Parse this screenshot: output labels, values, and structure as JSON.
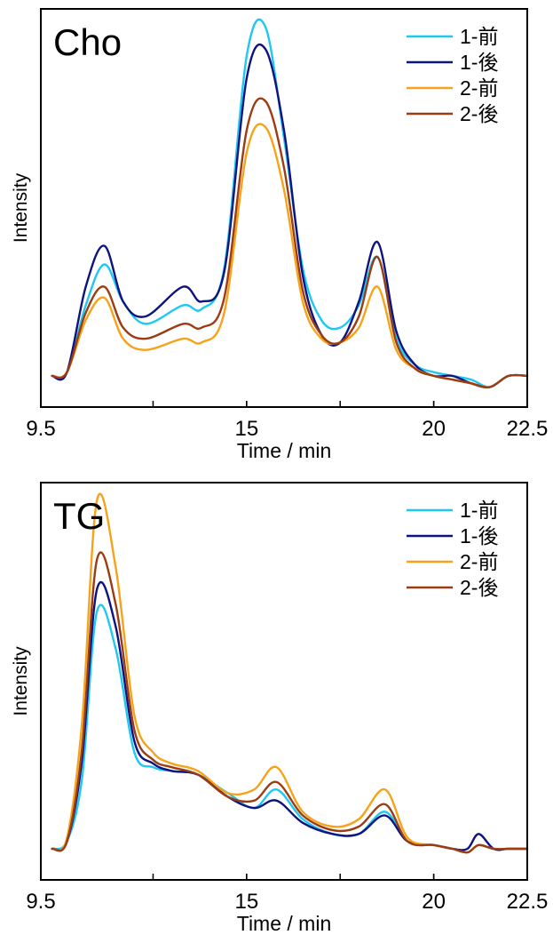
{
  "chart_data": [
    {
      "type": "line",
      "title": "Cho",
      "xlabel": "Time / min",
      "ylabel": "Intensity",
      "xlim": [
        9.5,
        22.5
      ],
      "ylim": [
        0,
        1.0
      ],
      "xticks": [
        9.5,
        15,
        20,
        22.5
      ],
      "xtick_labels": [
        "9.5",
        "15",
        "20",
        "22.5"
      ],
      "grid": false,
      "legend_position": "top-right",
      "series": [
        {
          "name": "1-前",
          "color": "#1ec8f0",
          "x": [
            9.8,
            10.2,
            10.7,
            11.2,
            11.7,
            12.3,
            13.3,
            13.8,
            14.4,
            15.0,
            15.5,
            16.0,
            16.5,
            17.0,
            17.5,
            18.0,
            18.5,
            19.0,
            19.5,
            20.0,
            20.5,
            21.0,
            21.5,
            22.0,
            22.5
          ],
          "y": [
            0.06,
            0.07,
            0.25,
            0.36,
            0.26,
            0.2,
            0.25,
            0.24,
            0.35,
            0.92,
            1.0,
            0.7,
            0.35,
            0.21,
            0.19,
            0.25,
            0.38,
            0.16,
            0.09,
            0.07,
            0.06,
            0.05,
            0.03,
            0.06,
            0.06
          ]
        },
        {
          "name": "1-後",
          "color": "#0d1480",
          "x": [
            9.8,
            10.2,
            10.7,
            11.2,
            11.7,
            12.3,
            13.3,
            13.8,
            14.4,
            15.0,
            15.5,
            16.0,
            16.5,
            17.0,
            17.5,
            18.0,
            18.5,
            19.0,
            19.5,
            20.0,
            20.5,
            21.0,
            21.5,
            22.0,
            22.5
          ],
          "y": [
            0.06,
            0.07,
            0.3,
            0.41,
            0.26,
            0.22,
            0.3,
            0.26,
            0.34,
            0.86,
            0.94,
            0.72,
            0.33,
            0.17,
            0.15,
            0.26,
            0.42,
            0.18,
            0.09,
            0.06,
            0.06,
            0.04,
            0.03,
            0.06,
            0.06
          ]
        },
        {
          "name": "2-前",
          "color": "#f6a21a",
          "x": [
            9.8,
            10.2,
            10.7,
            11.2,
            11.7,
            12.3,
            13.3,
            13.8,
            14.4,
            15.0,
            15.5,
            16.0,
            16.5,
            17.0,
            17.5,
            18.0,
            18.5,
            19.0,
            19.5,
            20.0,
            20.5,
            21.0,
            21.5,
            22.0,
            22.5
          ],
          "y": [
            0.06,
            0.07,
            0.21,
            0.27,
            0.16,
            0.13,
            0.16,
            0.15,
            0.23,
            0.66,
            0.73,
            0.56,
            0.26,
            0.16,
            0.15,
            0.19,
            0.3,
            0.13,
            0.08,
            0.06,
            0.05,
            0.04,
            0.03,
            0.06,
            0.06
          ]
        },
        {
          "name": "2-後",
          "color": "#9c3c12",
          "x": [
            9.8,
            10.2,
            10.7,
            11.2,
            11.7,
            12.3,
            13.3,
            13.8,
            14.4,
            15.0,
            15.5,
            16.0,
            16.5,
            17.0,
            17.5,
            18.0,
            18.5,
            19.0,
            19.5,
            20.0,
            20.5,
            21.0,
            21.5,
            22.0,
            22.5
          ],
          "y": [
            0.06,
            0.07,
            0.23,
            0.3,
            0.19,
            0.16,
            0.2,
            0.19,
            0.27,
            0.72,
            0.8,
            0.62,
            0.29,
            0.17,
            0.15,
            0.22,
            0.38,
            0.15,
            0.08,
            0.06,
            0.05,
            0.04,
            0.03,
            0.06,
            0.06
          ]
        }
      ]
    },
    {
      "type": "line",
      "title": "TG",
      "xlabel": "Time / min",
      "ylabel": "Intensity",
      "xlim": [
        9.5,
        22.5
      ],
      "ylim": [
        0,
        1.0
      ],
      "xticks": [
        9.5,
        15,
        20,
        22.5
      ],
      "xtick_labels": [
        "9.5",
        "15",
        "20",
        "22.5"
      ],
      "grid": false,
      "legend_position": "top-right",
      "series": [
        {
          "name": "1-前",
          "color": "#1ec8f0",
          "x": [
            9.8,
            10.2,
            10.6,
            11.0,
            11.5,
            12.0,
            12.5,
            13.0,
            13.7,
            14.5,
            15.2,
            15.8,
            16.5,
            17.3,
            18.0,
            18.7,
            19.3,
            20.0,
            20.5,
            20.9,
            21.2,
            21.6,
            22.0,
            22.5
          ],
          "y": [
            0.06,
            0.08,
            0.25,
            0.7,
            0.6,
            0.32,
            0.28,
            0.27,
            0.26,
            0.21,
            0.17,
            0.22,
            0.14,
            0.1,
            0.1,
            0.16,
            0.08,
            0.07,
            0.06,
            0.05,
            0.07,
            0.06,
            0.06,
            0.06
          ]
        },
        {
          "name": "1-後",
          "color": "#0d1480",
          "x": [
            9.8,
            10.2,
            10.6,
            11.0,
            11.5,
            12.0,
            12.5,
            13.0,
            13.7,
            14.5,
            15.2,
            15.8,
            16.5,
            17.3,
            18.0,
            18.7,
            19.3,
            20.0,
            20.5,
            20.9,
            21.2,
            21.6,
            22.0,
            22.5
          ],
          "y": [
            0.06,
            0.08,
            0.3,
            0.76,
            0.66,
            0.35,
            0.29,
            0.27,
            0.26,
            0.2,
            0.17,
            0.19,
            0.13,
            0.1,
            0.1,
            0.15,
            0.08,
            0.07,
            0.06,
            0.06,
            0.1,
            0.06,
            0.06,
            0.06
          ]
        },
        {
          "name": "2-前",
          "color": "#f6a21a",
          "x": [
            9.8,
            10.2,
            10.6,
            11.0,
            11.5,
            12.0,
            12.5,
            13.0,
            13.7,
            14.5,
            15.2,
            15.8,
            16.5,
            17.3,
            18.0,
            18.7,
            19.3,
            20.0,
            20.5,
            20.9,
            21.2,
            21.6,
            22.0,
            22.5
          ],
          "y": [
            0.06,
            0.09,
            0.4,
            1.0,
            0.82,
            0.42,
            0.32,
            0.29,
            0.27,
            0.21,
            0.22,
            0.28,
            0.16,
            0.12,
            0.14,
            0.22,
            0.09,
            0.07,
            0.06,
            0.05,
            0.07,
            0.06,
            0.06,
            0.06
          ]
        },
        {
          "name": "2-後",
          "color": "#9c3c12",
          "x": [
            9.8,
            10.2,
            10.6,
            11.0,
            11.5,
            12.0,
            12.5,
            13.0,
            13.7,
            14.5,
            15.2,
            15.8,
            16.5,
            17.3,
            18.0,
            18.7,
            19.3,
            20.0,
            20.5,
            20.9,
            21.2,
            21.6,
            22.0,
            22.5
          ],
          "y": [
            0.06,
            0.08,
            0.33,
            0.84,
            0.72,
            0.38,
            0.3,
            0.28,
            0.26,
            0.2,
            0.19,
            0.24,
            0.15,
            0.11,
            0.12,
            0.18,
            0.08,
            0.07,
            0.06,
            0.05,
            0.07,
            0.06,
            0.06,
            0.06
          ]
        }
      ]
    }
  ]
}
